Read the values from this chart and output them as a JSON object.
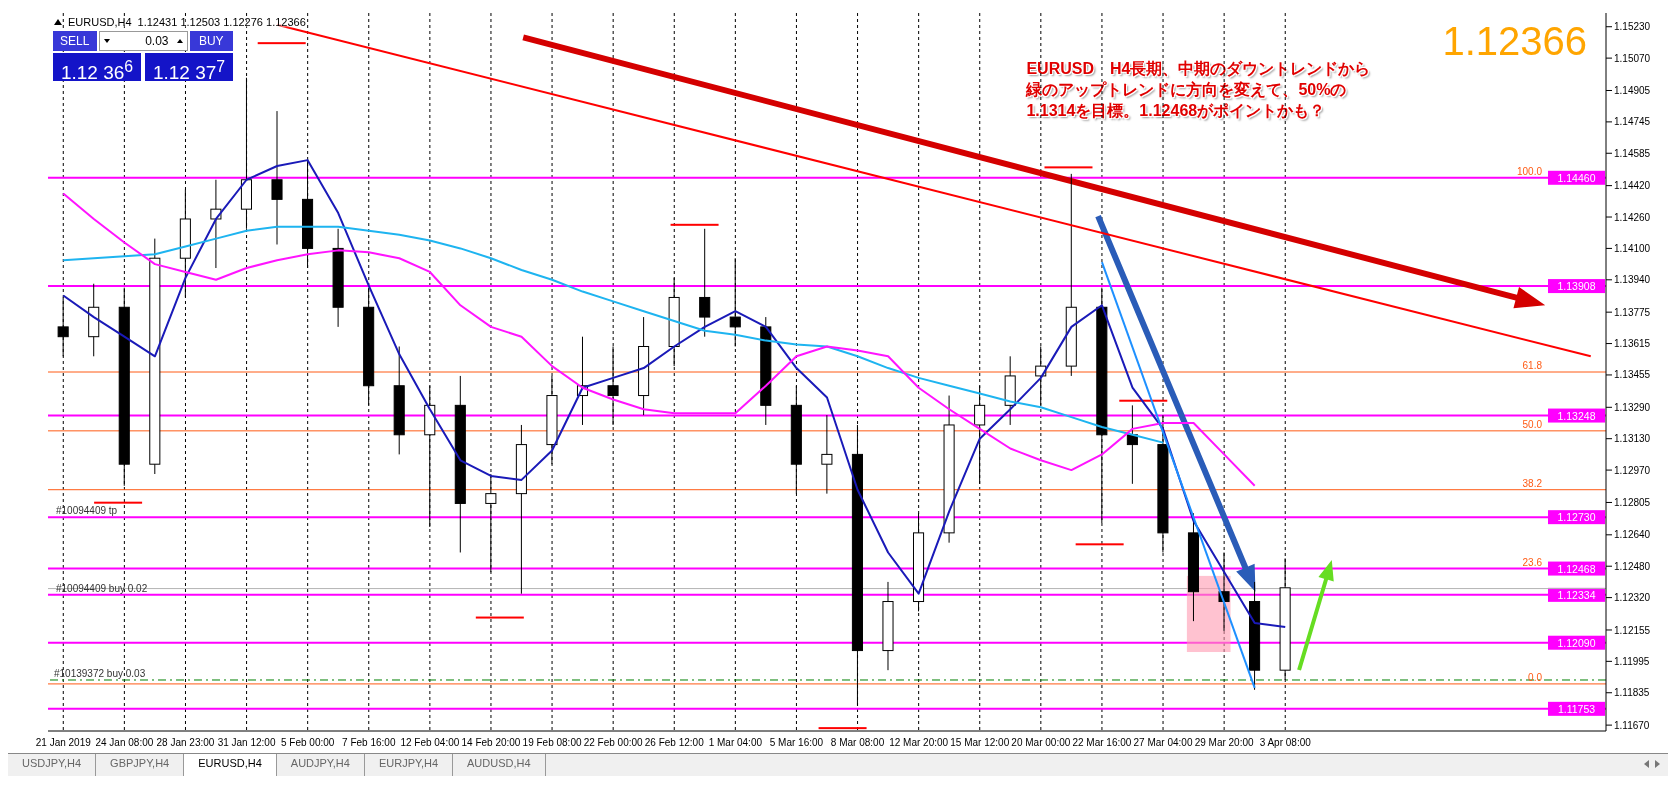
{
  "chart_data": {
    "type": "candlestick",
    "title": "EURUSD,H4",
    "subtitle": "1.12431 1.12503 1.12276 1.12366",
    "annotations": [
      "EURUSD　H4長期、中期のダウントレンドから",
      "緑のアップトレンドに方向を変えて、50%の",
      "1.1314を目標。1.12468がポイントかも？",
      "1.12366",
      "SELL",
      "BUY",
      "0.03",
      "1.12 36$^{6}$",
      "1.12 37$^{7}$",
      "USDJPY,H4",
      "GBPJPY,H4",
      "EURUSD,H4",
      "AUDJPY,H4",
      "EURJPY,H4",
      "AUDUSD,H4",
      {
        "text": "100.0",
        "y": 1.1446
      },
      {
        "text": "61.8",
        "y": 1.1347
      },
      {
        "text": "50.0",
        "y": 1.1317
      },
      {
        "text": "38.2",
        "y": 1.1287
      },
      {
        "text": "23.6",
        "y": 1.12468
      },
      {
        "text": "0.0",
        "y": 1.1188
      },
      {
        "text": "#10094409 tp",
        "y": 1.1273
      },
      {
        "text": "#10094409 buy 0.02",
        "y": 1.12334
      }
    ],
    "categories": [
      "21 Jan 2019",
      null,
      "24 Jan 08:00",
      null,
      "28 Jan 23:00",
      null,
      "31 Jan 12:00",
      null,
      "5 Feb 00:00",
      null,
      "7 Feb 16:00",
      null,
      "12 Feb 04:00",
      null,
      "14 Feb 20:00",
      null,
      "19 Feb 08:00",
      null,
      "22 Feb 00:00",
      null,
      "26 Feb 12:00",
      null,
      "1 Mar 04:00",
      null,
      "5 Mar 16:00",
      null,
      "8 Mar 08:00",
      null,
      "12 Mar 20:00",
      null,
      "15 Mar 12:00",
      null,
      "20 Mar 00:00",
      null,
      "22 Mar 16:00",
      null,
      "27 Mar 04:00",
      null,
      "29 Mar 20:00",
      null,
      "3 Apr 08:00",
      null,
      null,
      null,
      null,
      null,
      null,
      null,
      null,
      null,
      null
    ],
    "ohlc": [
      [
        1.137,
        1.1385,
        1.1355,
        1.1365
      ],
      [
        1.1365,
        1.1392,
        1.1355,
        1.138
      ],
      [
        1.138,
        1.139,
        1.1289,
        1.13
      ],
      [
        1.13,
        1.1415,
        1.1295,
        1.1405
      ],
      [
        1.1405,
        1.144,
        1.1385,
        1.1425
      ],
      [
        1.1425,
        1.1445,
        1.14,
        1.143
      ],
      [
        1.143,
        1.1497,
        1.142,
        1.1445
      ],
      [
        1.1445,
        1.148,
        1.1412,
        1.1435
      ],
      [
        1.1435,
        1.1455,
        1.14,
        1.141
      ],
      [
        1.141,
        1.142,
        1.137,
        1.138
      ],
      [
        1.138,
        1.139,
        1.133,
        1.134
      ],
      [
        1.134,
        1.136,
        1.1305,
        1.1315
      ],
      [
        1.1315,
        1.134,
        1.1268,
        1.133
      ],
      [
        1.133,
        1.1345,
        1.1255,
        1.128
      ],
      [
        1.128,
        1.1295,
        1.1245,
        1.1285
      ],
      [
        1.1285,
        1.132,
        1.1234,
        1.131
      ],
      [
        1.131,
        1.1345,
        1.13,
        1.1335
      ],
      [
        1.1335,
        1.1365,
        1.132,
        1.134
      ],
      [
        1.134,
        1.136,
        1.132,
        1.1335
      ],
      [
        1.1335,
        1.1375,
        1.1325,
        1.136
      ],
      [
        1.136,
        1.1395,
        1.135,
        1.1385
      ],
      [
        1.1385,
        1.142,
        1.1365,
        1.1375
      ],
      [
        1.1375,
        1.1405,
        1.136,
        1.137
      ],
      [
        1.137,
        1.1375,
        1.132,
        1.133
      ],
      [
        1.133,
        1.134,
        1.1285,
        1.13
      ],
      [
        1.13,
        1.1325,
        1.1285,
        1.1305
      ],
      [
        1.1305,
        1.132,
        1.1177,
        1.1205
      ],
      [
        1.1205,
        1.124,
        1.1195,
        1.123
      ],
      [
        1.123,
        1.1275,
        1.1225,
        1.1265
      ],
      [
        1.1265,
        1.1335,
        1.126,
        1.132
      ],
      [
        1.132,
        1.134,
        1.129,
        1.133
      ],
      [
        1.133,
        1.1355,
        1.132,
        1.1345
      ],
      [
        1.1345,
        1.136,
        1.133,
        1.135
      ],
      [
        1.135,
        1.1448,
        1.1345,
        1.138
      ],
      [
        1.138,
        1.139,
        1.127,
        1.1315
      ],
      [
        1.1315,
        1.133,
        1.129,
        1.131
      ],
      [
        1.131,
        1.1325,
        1.1255,
        1.1265
      ],
      [
        1.1265,
        1.1275,
        1.122,
        1.1235
      ],
      [
        1.1235,
        1.1255,
        1.1215,
        1.123
      ],
      [
        1.123,
        1.124,
        1.1185,
        1.1195
      ],
      [
        1.1195,
        1.1252,
        1.119,
        1.1237
      ],
      null,
      null,
      null,
      null,
      null,
      null,
      null,
      null,
      null,
      null
    ],
    "series": [
      {
        "type": "line",
        "color": "#1a1ab8",
        "values": [
          1.1386,
          1.1375,
          1.1365,
          1.1355,
          1.1395,
          1.1425,
          1.1445,
          1.1452,
          1.1455,
          1.1428,
          1.1391,
          1.1356,
          1.1328,
          1.1302,
          1.1294,
          1.1292,
          1.1307,
          1.1339,
          1.1344,
          1.1349,
          1.136,
          1.137,
          1.1378,
          1.137,
          1.1349,
          1.1334,
          1.1287,
          1.1255,
          1.1234,
          1.1276,
          1.1313,
          1.1328,
          1.1344,
          1.137,
          1.1381,
          1.1339,
          1.1318,
          1.1271,
          1.1245,
          1.1219,
          1.1217,
          null,
          null,
          null,
          null,
          null,
          null,
          null,
          null,
          null,
          null
        ]
      },
      {
        "type": "line",
        "color": "#1eb4f0",
        "values": [
          1.1404,
          1.1405,
          1.1406,
          1.1407,
          1.1411,
          1.1415,
          1.1419,
          1.1421,
          1.1421,
          1.1421,
          1.1419,
          1.1417,
          1.1414,
          1.141,
          1.1405,
          1.1399,
          1.1394,
          1.1388,
          1.1383,
          1.1378,
          1.1373,
          1.1368,
          1.1366,
          1.1363,
          1.1361,
          1.136,
          1.1355,
          1.1349,
          1.1344,
          1.134,
          1.1336,
          1.1332,
          1.1329,
          1.1324,
          1.1319,
          1.1315,
          1.1311,
          null,
          null,
          null,
          null,
          null,
          null,
          null,
          null,
          null,
          null,
          null,
          null,
          null,
          null
        ]
      },
      {
        "type": "line",
        "color": "#ff14ff",
        "values": [
          1.1438,
          1.1425,
          1.1413,
          1.1402,
          1.1398,
          1.1394,
          1.14,
          1.1404,
          1.1407,
          1.1409,
          1.1408,
          1.1405,
          1.1398,
          1.1381,
          1.137,
          1.1365,
          1.135,
          1.1339,
          1.1333,
          1.1328,
          1.1326,
          1.1326,
          1.1326,
          1.134,
          1.1355,
          1.136,
          1.1358,
          1.1355,
          1.1339,
          1.1328,
          1.1318,
          1.1308,
          1.1302,
          1.1297,
          1.1305,
          1.1318,
          1.1321,
          1.1321,
          1.1305,
          1.1289,
          null,
          null,
          null,
          null,
          null,
          null,
          null,
          null,
          null,
          null,
          null
        ]
      },
      {
        "type": "line",
        "color": "#ff0000",
        "values": [
          null,
          null,
          null,
          null,
          null,
          null,
          null,
          1.1524,
          null,
          null,
          null,
          null,
          null,
          null,
          null,
          null,
          null,
          null,
          null,
          null,
          null,
          null,
          null,
          null,
          null,
          null,
          null,
          null,
          null,
          null,
          null,
          null,
          null,
          null,
          null,
          null,
          null,
          null,
          null,
          null,
          null,
          null,
          null,
          null,
          null,
          null,
          null,
          null,
          null,
          null,
          1.1355
        ]
      },
      {
        "type": "line",
        "color": "#1e90ff",
        "values": [
          null,
          null,
          null,
          null,
          null,
          null,
          null,
          null,
          null,
          null,
          null,
          null,
          null,
          null,
          null,
          null,
          null,
          null,
          null,
          null,
          null,
          null,
          null,
          null,
          null,
          null,
          null,
          null,
          null,
          null,
          null,
          null,
          null,
          null,
          1.1403,
          null,
          null,
          null,
          null,
          1.1186,
          null,
          null,
          null,
          null,
          null,
          null,
          null,
          null,
          null,
          null,
          null
        ]
      }
    ],
    "ylim": [
      1.1164,
      1.153
    ],
    "yticks": [
      {
        "value": 1.1523,
        "label": "1.15230"
      },
      {
        "value": 1.1507,
        "label": "1.15070"
      },
      1.14905,
      1.14745,
      1.14585,
      {
        "value": 1.1442,
        "label": "1.14420"
      },
      {
        "value": 1.1426,
        "label": "1.14260"
      },
      {
        "value": 1.141,
        "label": "1.14100"
      },
      {
        "value": 1.1394,
        "label": "1.13940"
      },
      1.13775,
      1.13615,
      1.13455,
      {
        "value": 1.1329,
        "label": "1.13290"
      },
      {
        "value": 1.1313,
        "label": "1.13130"
      },
      {
        "value": 1.1297,
        "label": "1.12970"
      },
      1.12805,
      {
        "value": 1.1264,
        "label": "1.12640"
      },
      {
        "value": 1.1248,
        "label": "1.12480"
      },
      {
        "value": 1.1232,
        "label": "1.12320"
      },
      1.12155,
      1.11995,
      1.11835,
      {
        "value": 1.1167,
        "label": "1.11670"
      }
    ],
    "ref_lines": [
      {
        "axis": "y",
        "value": 1.1446,
        "label": "1.14460",
        "color": "#ff00ff"
      },
      {
        "axis": "y",
        "value": 1.13908,
        "label": "1.13908",
        "color": "#ff00ff"
      },
      {
        "axis": "y",
        "value": 1.13248,
        "label": "1.13248",
        "color": "#ff00ff"
      },
      {
        "axis": "y",
        "value": 1.1273,
        "label": "1.12730",
        "color": "#ff00ff"
      },
      {
        "axis": "y",
        "value": 1.12468,
        "label": "1.12468",
        "color": "#ff00ff"
      },
      {
        "axis": "y",
        "value": 1.12334,
        "label": "1.12334",
        "color": "#ff00ff"
      },
      {
        "axis": "y",
        "value": 1.1209,
        "label": "1.12090",
        "color": "#ff00ff"
      },
      {
        "axis": "y",
        "value": 1.11753,
        "label": "1.11753",
        "color": "#ff00ff"
      },
      {
        "axis": "y",
        "value": 1.1347,
        "color": "#ff5a14"
      },
      {
        "axis": "y",
        "value": 1.1317,
        "color": "#ff5a14"
      },
      {
        "axis": "y",
        "value": 1.1287,
        "color": "#ff5a14"
      },
      {
        "axis": "y",
        "value": 1.1188,
        "color": "#ff5a14"
      },
      {
        "axis": "y",
        "value": 1.119,
        "label": "#10139372 buy 0.03",
        "color": "#008000",
        "line_style": "dashed"
      },
      {
        "axis": "y",
        "value": 1.12366,
        "color": "#b4b4b4"
      }
    ],
    "grid": "x"
  }
}
